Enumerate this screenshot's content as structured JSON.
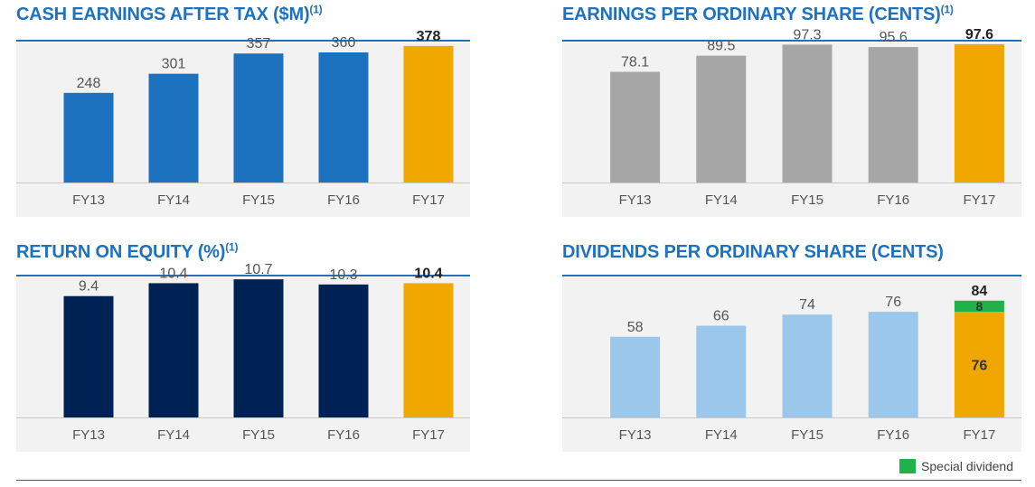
{
  "chart_data": [
    {
      "type": "bar",
      "title": "CASH EARNINGS AFTER TAX ($M)",
      "title_footnote": "(1)",
      "categories": [
        "FY13",
        "FY14",
        "FY15",
        "FY16",
        "FY17"
      ],
      "series": [
        {
          "values": [
            248,
            301,
            357,
            360,
            378
          ]
        }
      ],
      "value_labels": [
        "248",
        "301",
        "357",
        "360",
        "378"
      ],
      "bar_colors": [
        "#1d72c0",
        "#1d72c0",
        "#1d72c0",
        "#1d72c0",
        "#f0a800"
      ],
      "highlight_index": 4,
      "ylim": [
        0,
        400
      ],
      "grid": false
    },
    {
      "type": "bar",
      "title": "EARNINGS PER ORDINARY SHARE (CENTS)",
      "title_footnote": "(1)",
      "categories": [
        "FY13",
        "FY14",
        "FY15",
        "FY16",
        "FY17"
      ],
      "series": [
        {
          "values": [
            78.1,
            89.5,
            97.3,
            95.6,
            97.6
          ]
        }
      ],
      "value_labels": [
        "78.1",
        "89.5",
        "97.3",
        "95.6",
        "97.6"
      ],
      "bar_colors": [
        "#a6a6a6",
        "#a6a6a6",
        "#a6a6a6",
        "#a6a6a6",
        "#f0a800"
      ],
      "highlight_index": 4,
      "ylim": [
        0,
        102
      ],
      "grid": false
    },
    {
      "type": "bar",
      "title": "RETURN ON EQUITY (%)",
      "title_footnote": "(1)",
      "categories": [
        "FY13",
        "FY14",
        "FY15",
        "FY16",
        "FY17"
      ],
      "series": [
        {
          "values": [
            9.4,
            10.4,
            10.7,
            10.3,
            10.4
          ]
        }
      ],
      "value_labels": [
        "9.4",
        "10.4",
        "10.7",
        "10.3",
        "10.4"
      ],
      "bar_colors": [
        "#002153",
        "#002153",
        "#002153",
        "#002153",
        "#f0a800"
      ],
      "highlight_index": 4,
      "ylim": [
        0,
        11.2
      ],
      "grid": false
    },
    {
      "type": "bar",
      "stacked": true,
      "title": "DIVIDENDS PER ORDINARY SHARE (CENTS)",
      "title_footnote": "",
      "categories": [
        "FY13",
        "FY14",
        "FY15",
        "FY16",
        "FY17"
      ],
      "series": [
        {
          "values": [
            58,
            66,
            74,
            76,
            76
          ]
        },
        {
          "name": "Special dividend",
          "values": [
            0,
            0,
            0,
            0,
            8
          ]
        }
      ],
      "totals": [
        58,
        66,
        74,
        76,
        84
      ],
      "value_labels": [
        "58",
        "66",
        "74",
        "76",
        "84"
      ],
      "segment_labels": {
        "4": [
          "76",
          "8"
        ]
      },
      "bar_colors": [
        "#9bc8ea",
        "#9bc8ea",
        "#9bc8ea",
        "#9bc8ea",
        "#f0a800"
      ],
      "special_color": "#1fb24a",
      "highlight_index": 4,
      "ylim": [
        0,
        104
      ],
      "grid": false
    }
  ],
  "legend": {
    "label": "Special dividend",
    "color": "#1fb24a"
  }
}
